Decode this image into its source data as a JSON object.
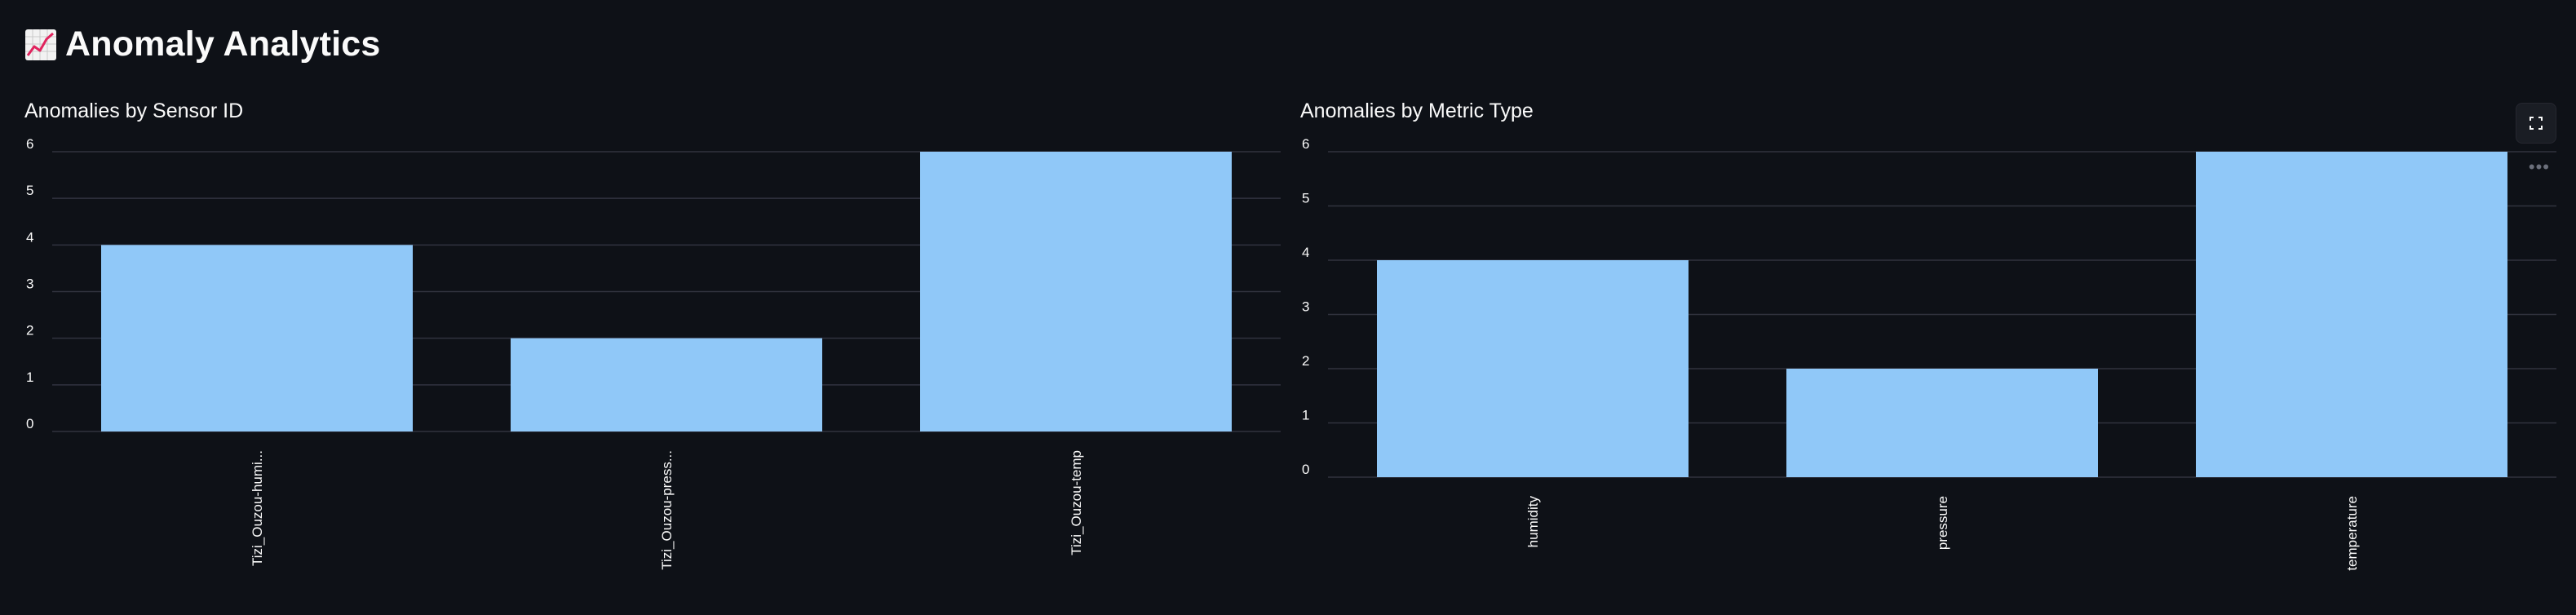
{
  "page": {
    "title": "Anomaly Analytics",
    "title_icon": "chart-increasing-icon"
  },
  "chart_data": [
    {
      "type": "bar",
      "title": "Anomalies by Sensor ID",
      "categories": [
        "Tizi_Ouzou-humi...",
        "Tizi_Ouzou-press...",
        "Tizi_Ouzou-temp"
      ],
      "values": [
        4,
        2,
        6
      ],
      "yticks": [
        0,
        1,
        2,
        3,
        4,
        5,
        6
      ],
      "ylim": [
        0,
        6
      ],
      "xlabel": "",
      "ylabel": "",
      "grid": true,
      "bar_color": "#90c8f8"
    },
    {
      "type": "bar",
      "title": "Anomalies by Metric Type",
      "categories": [
        "humidity",
        "pressure",
        "temperature"
      ],
      "values": [
        4,
        2,
        6
      ],
      "yticks": [
        0,
        1,
        2,
        3,
        4,
        5,
        6
      ],
      "ylim": [
        0,
        6
      ],
      "xlabel": "",
      "ylabel": "",
      "grid": true,
      "bar_color": "#90c8f8"
    }
  ],
  "toolbar": {
    "fullscreen_icon": "fullscreen-icon",
    "more_icon": "more-options-icon"
  }
}
